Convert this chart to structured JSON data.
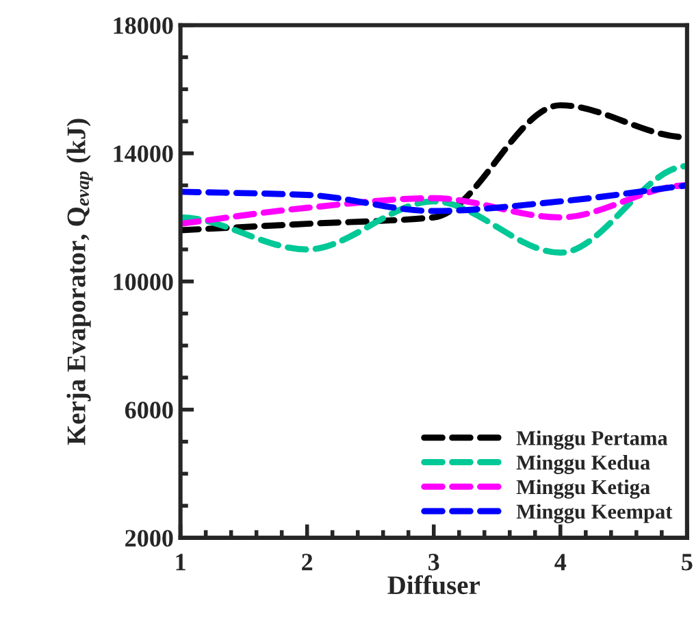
{
  "chart_data": {
    "type": "line",
    "xlabel": "Diffuser",
    "ylabel": "Kerja Evaporator, Q$_{evap}$ (kJ)",
    "x": [
      1,
      2,
      3,
      4,
      5
    ],
    "xlim": [
      1,
      5
    ],
    "xticks": [
      1,
      2,
      3,
      4,
      5
    ],
    "ylim": [
      2000,
      18000
    ],
    "yticks": [
      2000,
      6000,
      10000,
      14000,
      18000
    ],
    "line_style": "dashed",
    "marker": "none",
    "grid": false,
    "legend": "bottom right",
    "series": [
      {
        "name": "Minggu Pertama",
        "color": "#000000",
        "values": [
          11600,
          11800,
          12000,
          15500,
          14500
        ]
      },
      {
        "name": "Minggu Kedua",
        "color": "#00c896",
        "values": [
          12000,
          11000,
          12500,
          10900,
          13600
        ]
      },
      {
        "name": "Minggu Ketiga",
        "color": "#ff00ff",
        "values": [
          11800,
          12300,
          12600,
          12000,
          13000
        ]
      },
      {
        "name": "Minggu Keempat",
        "color": "#0000ff",
        "values": [
          12800,
          12700,
          12200,
          12500,
          13000
        ]
      }
    ]
  }
}
